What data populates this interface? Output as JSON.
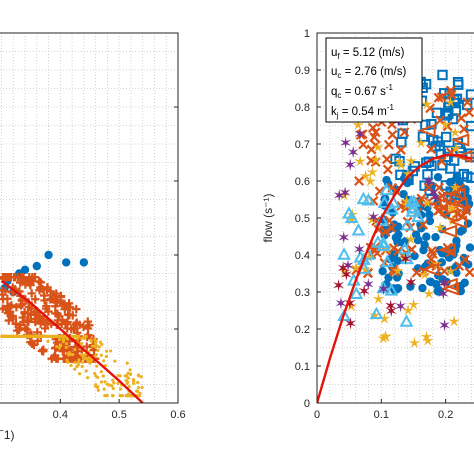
{
  "colors": {
    "blue": "#0072BD",
    "orange": "#D95319",
    "yellow": "#EDB120",
    "purple": "#7E2F8E",
    "cyan": "#4DBEEE",
    "darkred": "#A2142F",
    "fit": "#E3120B",
    "grid": "#c8c8c8"
  },
  "chart_data": [
    {
      "type": "scatter",
      "panel": "left",
      "xlabel_fragment": "−",
      "xlabel_suffix": "1)",
      "ylabel": "",
      "xticks": [
        "0.4",
        "0.5",
        "0.6"
      ],
      "xtick_values": [
        0.4,
        0.5,
        0.6
      ],
      "xlim": [
        0.3,
        0.6
      ],
      "ylim": [
        0,
        100
      ],
      "grid": true,
      "fit_curve": {
        "color_key": "fit",
        "x": [
          0.3,
          0.35,
          0.4,
          0.45,
          0.5,
          0.54
        ],
        "y": [
          33,
          27,
          20,
          13,
          6,
          0
        ]
      },
      "series": [
        {
          "marker": "circle",
          "color_key": "blue",
          "points": [
            [
              0.41,
              38
            ],
            [
              0.44,
              38
            ],
            [
              0.38,
              40
            ],
            [
              0.36,
              37
            ],
            [
              0.33,
              35
            ],
            [
              0.31,
              33
            ],
            [
              0.34,
              36
            ],
            [
              0.305,
              31
            ],
            [
              0.32,
              30
            ]
          ]
        },
        {
          "marker": "plus",
          "color_key": "orange",
          "cluster": {
            "x": [
              0.3,
              0.46
            ],
            "y": [
              12,
              34
            ],
            "n": 260
          }
        },
        {
          "marker": "dot",
          "color_key": "yellow",
          "cluster": {
            "x": [
              0.3,
              0.54
            ],
            "y": [
              2,
              18
            ],
            "n": 280
          }
        }
      ]
    },
    {
      "type": "scatter",
      "panel": "right",
      "ylabel": "flow (s⁻¹)",
      "xticks": [
        "0",
        "0.1",
        "0.2"
      ],
      "xtick_values": [
        0,
        0.1,
        0.2
      ],
      "yticks": [
        "0",
        "0.1",
        "0.2",
        "0.3",
        "0.4",
        "0.5",
        "0.6",
        "0.7",
        "0.8",
        "0.9",
        "1"
      ],
      "ytick_values": [
        0,
        0.1,
        0.2,
        0.3,
        0.4,
        0.5,
        0.6,
        0.7,
        0.8,
        0.9,
        1
      ],
      "xlim": [
        0,
        0.24
      ],
      "ylim": [
        0,
        1
      ],
      "grid": true,
      "legend_box": {
        "placement": "top-left",
        "lines": [
          {
            "main": "u",
            "sub": "f",
            "rest": " = 5.12 (m/s)"
          },
          {
            "main": "u",
            "sub": "c",
            "rest": " = 2.76 (m/s)"
          },
          {
            "main": "q",
            "sub": "c",
            "rest": " = 0.67 s",
            "sup": "-1"
          },
          {
            "main": "k",
            "sub": "j",
            "rest": " = 0.54 m",
            "sup": "-1"
          }
        ]
      },
      "fit_curve": {
        "color_key": "fit",
        "x": [
          0,
          0.02,
          0.04,
          0.06,
          0.08,
          0.1,
          0.12,
          0.14,
          0.16,
          0.18,
          0.2,
          0.22,
          0.24
        ],
        "y": [
          0,
          0.12,
          0.23,
          0.33,
          0.42,
          0.5,
          0.56,
          0.61,
          0.64,
          0.66,
          0.67,
          0.67,
          0.66
        ]
      },
      "series": [
        {
          "marker": "circle",
          "color_key": "blue",
          "cluster": {
            "x": [
              0.1,
              0.24
            ],
            "y": [
              0.3,
              0.62
            ],
            "n": 120
          }
        },
        {
          "marker": "square",
          "color_key": "blue",
          "cluster": {
            "x": [
              0.12,
              0.24
            ],
            "y": [
              0.55,
              0.9
            ],
            "n": 70
          }
        },
        {
          "marker": "cross",
          "color_key": "orange",
          "cluster": {
            "x": [
              0.06,
              0.24
            ],
            "y": [
              0.35,
              0.85
            ],
            "n": 110
          }
        },
        {
          "marker": "star",
          "color_key": "yellow",
          "cluster": {
            "x": [
              0.04,
              0.22
            ],
            "y": [
              0.15,
              0.85
            ],
            "n": 60
          }
        },
        {
          "marker": "triangle",
          "color_key": "cyan",
          "cluster": {
            "x": [
              0.04,
              0.16
            ],
            "y": [
              0.2,
              0.6
            ],
            "n": 35
          }
        },
        {
          "marker": "tri-left",
          "color_key": "orange",
          "cluster": {
            "x": [
              0.17,
              0.24
            ],
            "y": [
              0.3,
              0.8
            ],
            "n": 14
          }
        },
        {
          "marker": "hexstar",
          "color_key": "purple",
          "cluster": {
            "x": [
              0.03,
              0.2
            ],
            "y": [
              0.15,
              0.8
            ],
            "n": 22
          }
        },
        {
          "marker": "hexstar",
          "color_key": "darkred",
          "cluster": {
            "x": [
              0.03,
              0.16
            ],
            "y": [
              0.15,
              0.4
            ],
            "n": 10
          }
        }
      ]
    }
  ]
}
